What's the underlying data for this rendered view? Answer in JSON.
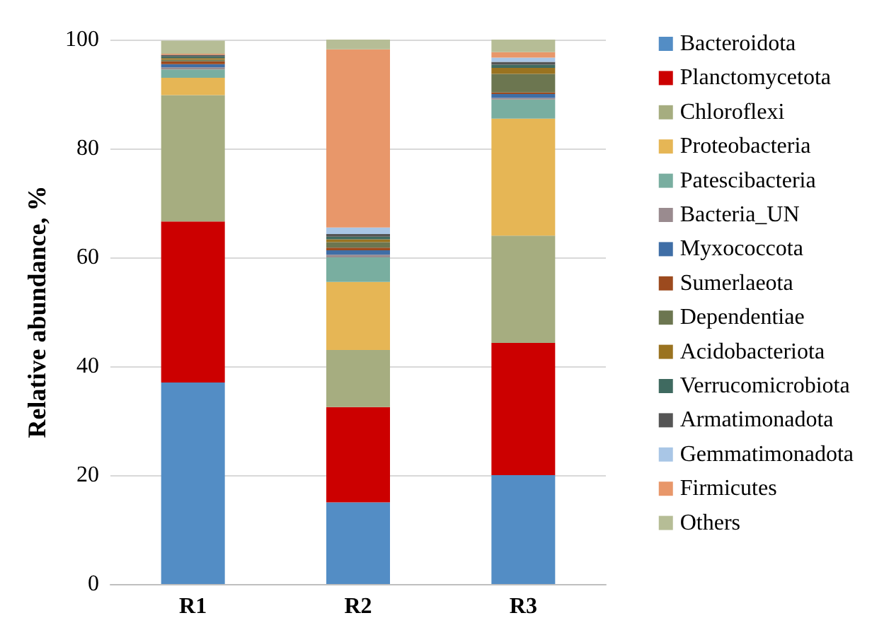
{
  "chart_data": {
    "type": "bar",
    "stacked": true,
    "ylabel": "Relative abundance, %",
    "categories": [
      "R1",
      "R2",
      "R3"
    ],
    "ylim": [
      0,
      100
    ],
    "yticks": [
      0,
      20,
      40,
      60,
      80,
      100
    ],
    "grid": "y",
    "legend": "right",
    "series": [
      {
        "name": "Bacteroidota",
        "color": "#538dc5",
        "values": [
          37,
          15,
          20
        ]
      },
      {
        "name": "Planctomycetota",
        "color": "#cc0000",
        "values": [
          29.6,
          17.5,
          24.3
        ]
      },
      {
        "name": "Chloroflexi",
        "color": "#a6ad80",
        "values": [
          23.2,
          10.5,
          19.7
        ]
      },
      {
        "name": "Proteobacteria",
        "color": "#e6b655",
        "values": [
          3.2,
          12.5,
          21.5
        ]
      },
      {
        "name": "Patescibacteria",
        "color": "#79aea0",
        "values": [
          1.5,
          4.5,
          3.5
        ]
      },
      {
        "name": "Bacteria_UN",
        "color": "#9a8b8f",
        "values": [
          0.4,
          0.5,
          0.3
        ]
      },
      {
        "name": "Myxococcota",
        "color": "#3f6ea6",
        "values": [
          0.6,
          0.8,
          0.7
        ]
      },
      {
        "name": "Sumerlaeota",
        "color": "#9c4a1e",
        "values": [
          0.5,
          0.5,
          0.3
        ]
      },
      {
        "name": "Dependentiae",
        "color": "#6c7650",
        "values": [
          0.3,
          1.0,
          3.4
        ]
      },
      {
        "name": "Acidobacteriota",
        "color": "#9a7320",
        "values": [
          0.3,
          0.5,
          1.1
        ]
      },
      {
        "name": "Verrucomicrobiota",
        "color": "#3f6a60",
        "values": [
          0.3,
          0.5,
          0.6
        ]
      },
      {
        "name": "Armatimonadota",
        "color": "#555555",
        "values": [
          0.3,
          0.5,
          0.5
        ]
      },
      {
        "name": "Gemmatimonadota",
        "color": "#a9c6e6",
        "values": [
          null,
          1.2,
          0.8
        ]
      },
      {
        "name": "Firmicutes",
        "color": "#e8976a",
        "values": [
          0.2,
          32.7,
          1.0
        ]
      },
      {
        "name": "Others",
        "color": "#b6bd96",
        "values": [
          2.4,
          1.8,
          2.3
        ]
      }
    ]
  }
}
